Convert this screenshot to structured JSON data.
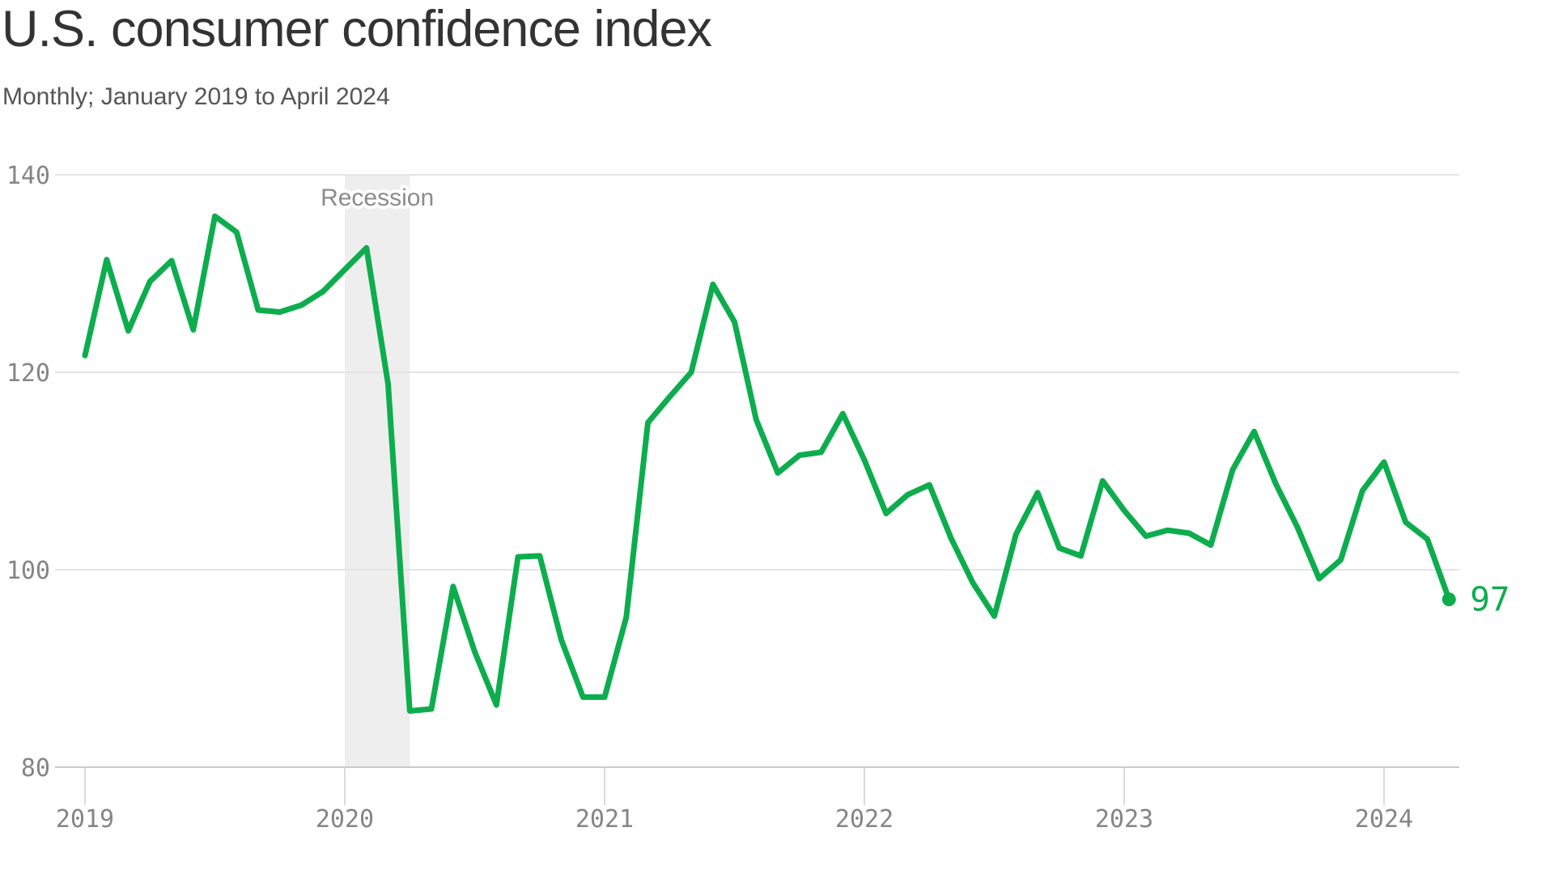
{
  "chart_data": {
    "type": "line",
    "title": "U.S. consumer confidence index",
    "subtitle": "Monthly; January 2019 to April 2024",
    "frequency": "monthly",
    "x_start": "2019-01",
    "x_end": "2024-04",
    "x_tick_labels": [
      "2019",
      "2020",
      "2021",
      "2022",
      "2023",
      "2024"
    ],
    "y_ticks": [
      140,
      120,
      100,
      80
    ],
    "ylim": [
      80,
      140
    ],
    "grid": "horizontal",
    "legend": "none",
    "line_color": "#0dad4e",
    "series": [
      {
        "name": "Consumer confidence index",
        "values": [
          121.7,
          131.4,
          124.2,
          129.2,
          131.3,
          124.3,
          135.8,
          134.2,
          126.3,
          126.1,
          126.8,
          128.2,
          130.4,
          132.6,
          118.8,
          85.7,
          85.9,
          98.3,
          91.7,
          86.3,
          101.3,
          101.4,
          92.9,
          87.1,
          87.1,
          95.2,
          114.9,
          117.5,
          120.0,
          128.9,
          125.1,
          115.2,
          109.8,
          111.6,
          111.9,
          115.8,
          111.1,
          105.7,
          107.6,
          108.6,
          103.2,
          98.7,
          95.3,
          103.6,
          107.8,
          102.2,
          101.4,
          109.0,
          106.0,
          103.4,
          104.0,
          103.7,
          102.5,
          110.1,
          114.0,
          108.7,
          104.3,
          99.1,
          101.0,
          108.0,
          110.9,
          104.8,
          103.1,
          97.0
        ]
      }
    ],
    "annotations": {
      "recession": {
        "label": "Recession",
        "span": [
          "2020-01",
          "2020-04"
        ]
      },
      "endpoint": {
        "label": "97",
        "value": 97
      }
    }
  }
}
